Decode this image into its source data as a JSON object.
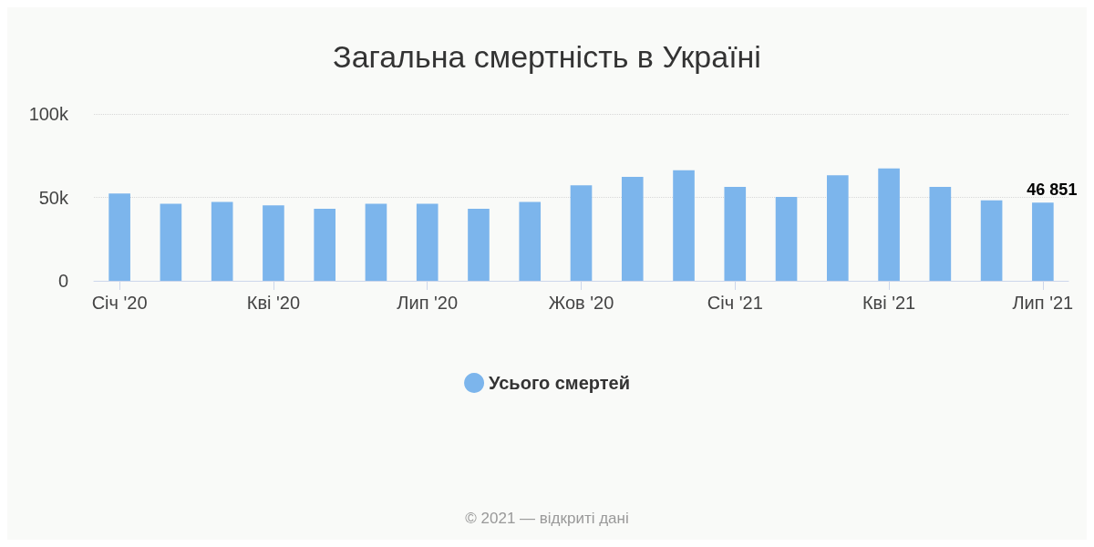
{
  "chart_data": {
    "type": "bar",
    "title": "Загальна смертність в Україні",
    "categories": [
      "Січ '20",
      null,
      null,
      "Кві '20",
      null,
      null,
      "Лип '20",
      null,
      null,
      "Жов '20",
      null,
      null,
      "Січ '21",
      null,
      null,
      "Кві '21",
      null,
      null,
      "Лип '21"
    ],
    "series": [
      {
        "name": "Усього смертей",
        "color": "#7cb5ec",
        "values": [
          52300,
          46200,
          47200,
          45200,
          43200,
          46200,
          46200,
          43200,
          47200,
          57300,
          62300,
          66300,
          56300,
          50300,
          63300,
          67300,
          56300,
          48200,
          46851
        ],
        "value_labels": [
          null,
          null,
          null,
          null,
          null,
          null,
          null,
          null,
          null,
          null,
          null,
          null,
          null,
          null,
          null,
          null,
          null,
          null,
          "46 851"
        ]
      }
    ],
    "ylim": [
      0,
      100000
    ],
    "yticks": [
      {
        "value": 0,
        "label": "0"
      },
      {
        "value": 50000,
        "label": "50k"
      },
      {
        "value": 100000,
        "label": "100k"
      }
    ],
    "grid": "y",
    "legend": "bottom",
    "annotations": [
      "© 2021 — відкриті дані"
    ]
  }
}
